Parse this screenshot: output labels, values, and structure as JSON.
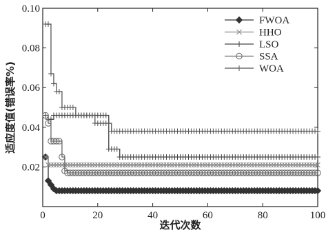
{
  "chart_data": {
    "type": "line",
    "xlabel": "迭代次数",
    "ylabel": "适应度值(错误率%)",
    "xlim": [
      0,
      100
    ],
    "ylim": [
      0,
      0.1
    ],
    "xticks": [
      "0",
      "20",
      "40",
      "60",
      "80",
      "100"
    ],
    "yticks": [
      "0.02",
      "0.04",
      "0.06",
      "0.08",
      "0.10"
    ],
    "grid": false,
    "legend_position": "top-right",
    "series": [
      {
        "name": "FWOA",
        "color": "#333333",
        "marker": "diamond",
        "x": [
          1,
          2,
          3,
          4,
          5,
          100
        ],
        "y": [
          0.025,
          0.013,
          0.011,
          0.009,
          0.008,
          0.008
        ]
      },
      {
        "name": "HHO",
        "color": "#888888",
        "marker": "x",
        "x": [
          1,
          2,
          3,
          100
        ],
        "y": [
          0.025,
          0.021,
          0.021,
          0.021
        ]
      },
      {
        "name": "LSO",
        "color": "#444444",
        "marker": "plus",
        "x": [
          1,
          2,
          3,
          4,
          23,
          24,
          27,
          28,
          100
        ],
        "y": [
          0.046,
          0.044,
          0.044,
          0.046,
          0.046,
          0.029,
          0.029,
          0.025,
          0.025
        ]
      },
      {
        "name": "SSA",
        "color": "#666666",
        "marker": "circle",
        "x": [
          1,
          2,
          3,
          6,
          7,
          8,
          9,
          100
        ],
        "y": [
          0.046,
          0.042,
          0.033,
          0.033,
          0.025,
          0.018,
          0.017,
          0.017
        ]
      },
      {
        "name": "WOA",
        "color": "#555555",
        "marker": "plus",
        "x": [
          1,
          2,
          3,
          4,
          5,
          7,
          8,
          12,
          14,
          19,
          21,
          25,
          26,
          100
        ],
        "y": [
          0.092,
          0.092,
          0.067,
          0.062,
          0.058,
          0.05,
          0.05,
          0.046,
          0.046,
          0.042,
          0.042,
          0.038,
          0.038,
          0.038
        ]
      }
    ]
  }
}
